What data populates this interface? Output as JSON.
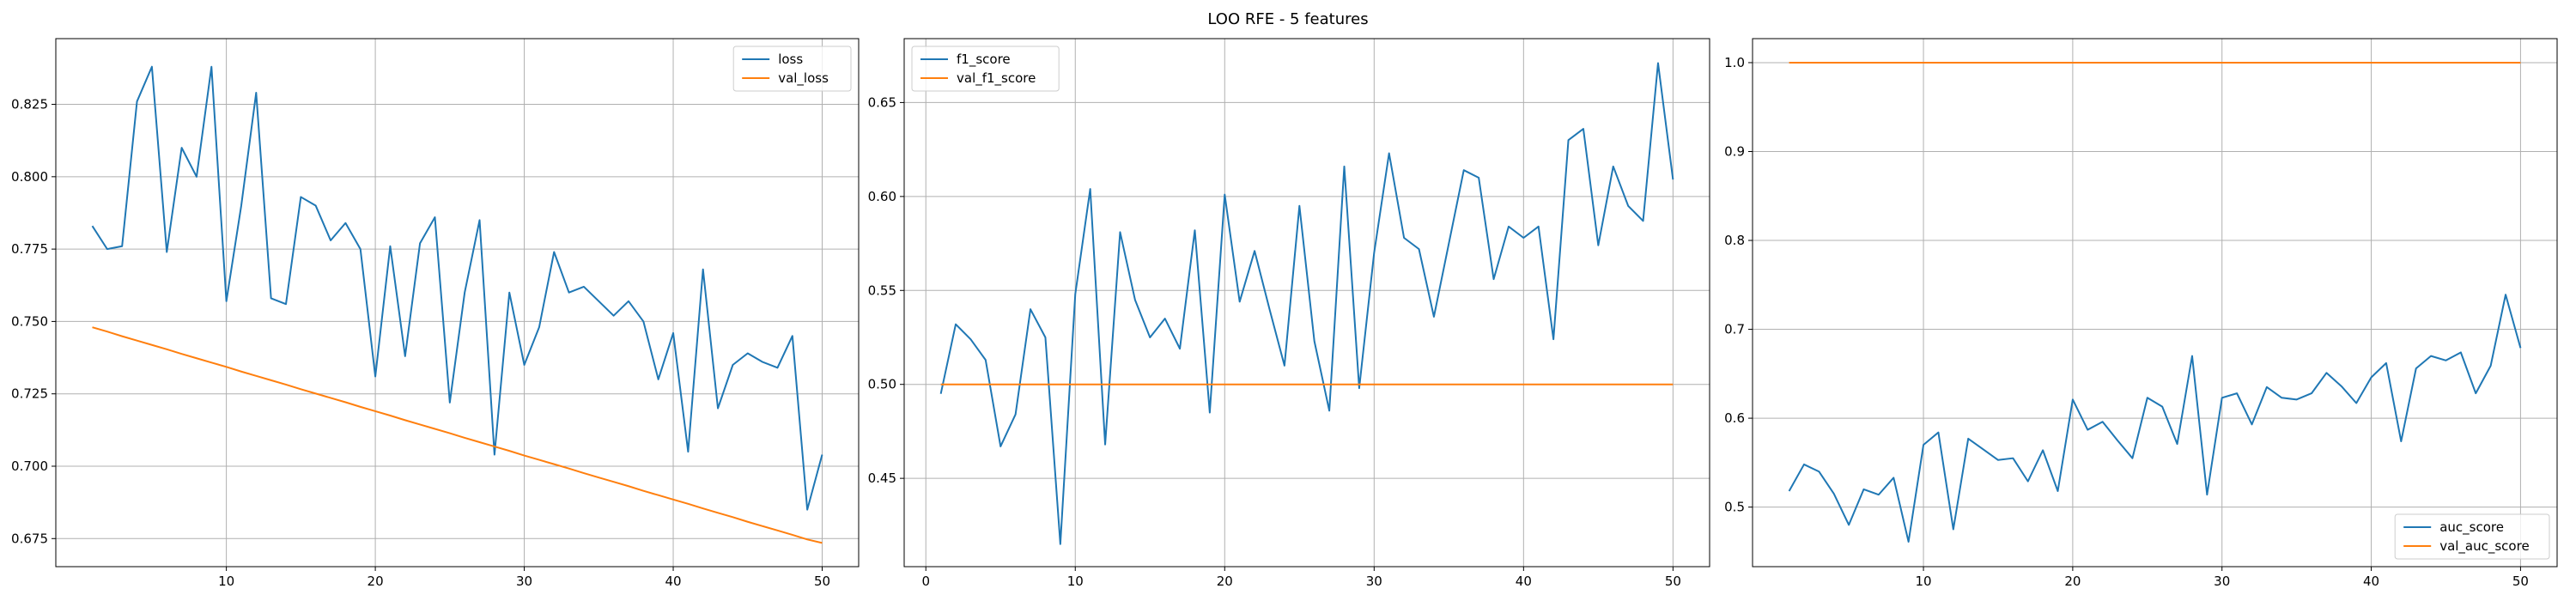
{
  "figure": {
    "title": "LOO RFE - 5 features"
  },
  "chart_data": [
    {
      "type": "line",
      "title": "",
      "xlabel": "",
      "ylabel": "",
      "xlim": [
        -1.45,
        52.45
      ],
      "ylim": [
        0.6653,
        0.8477
      ],
      "xticks": [
        10,
        20,
        30,
        40,
        50
      ],
      "yticks": [
        0.675,
        0.7,
        0.725,
        0.75,
        0.775,
        0.8,
        0.825
      ],
      "ytick_decimals": 3,
      "grid": true,
      "legend": "top-right",
      "series": [
        {
          "name": "loss",
          "color": "#1f77b4",
          "x": [
            1,
            2,
            3,
            4,
            5,
            6,
            7,
            8,
            9,
            10,
            11,
            12,
            13,
            14,
            15,
            16,
            17,
            18,
            19,
            20,
            21,
            22,
            23,
            24,
            25,
            26,
            27,
            28,
            29,
            30,
            31,
            32,
            33,
            34,
            35,
            36,
            37,
            38,
            39,
            40,
            41,
            42,
            43,
            44,
            45,
            46,
            47,
            48,
            49,
            50
          ],
          "values": [
            0.783,
            0.775,
            0.776,
            0.826,
            0.838,
            0.774,
            0.81,
            0.8,
            0.838,
            0.757,
            0.79,
            0.829,
            0.758,
            0.756,
            0.793,
            0.79,
            0.778,
            0.784,
            0.775,
            0.731,
            0.776,
            0.738,
            0.777,
            0.786,
            0.722,
            0.76,
            0.785,
            0.704,
            0.76,
            0.735,
            0.748,
            0.774,
            0.76,
            0.762,
            0.757,
            0.752,
            0.757,
            0.75,
            0.73,
            0.746,
            0.705,
            0.768,
            0.72,
            0.735,
            0.739,
            0.736,
            0.734,
            0.745,
            0.685,
            0.704
          ]
        },
        {
          "name": "val_loss",
          "color": "#ff7f0e",
          "x": [
            1,
            2,
            3,
            4,
            5,
            6,
            7,
            8,
            9,
            10,
            11,
            12,
            13,
            14,
            15,
            16,
            17,
            18,
            19,
            20,
            21,
            22,
            23,
            24,
            25,
            26,
            27,
            28,
            29,
            30,
            31,
            32,
            33,
            34,
            35,
            36,
            37,
            38,
            39,
            40,
            41,
            42,
            43,
            44,
            45,
            46,
            47,
            48,
            49,
            50
          ],
          "values": [
            0.748,
            0.7465,
            0.7449,
            0.7434,
            0.7419,
            0.7404,
            0.7388,
            0.7373,
            0.7358,
            0.7343,
            0.7327,
            0.7312,
            0.7297,
            0.7282,
            0.7266,
            0.7251,
            0.7236,
            0.7221,
            0.7205,
            0.719,
            0.7175,
            0.7159,
            0.7144,
            0.7129,
            0.7114,
            0.7098,
            0.7083,
            0.7068,
            0.7053,
            0.7037,
            0.7022,
            0.7007,
            0.6992,
            0.6976,
            0.6961,
            0.6946,
            0.6931,
            0.6915,
            0.69,
            0.6885,
            0.687,
            0.6854,
            0.6839,
            0.6824,
            0.6808,
            0.6793,
            0.6778,
            0.6763,
            0.6747,
            0.6735
          ]
        }
      ]
    },
    {
      "type": "line",
      "title": "",
      "xlabel": "",
      "ylabel": "",
      "xlim": [
        -1.45,
        52.45
      ],
      "ylim": [
        0.403,
        0.684
      ],
      "xticks": [
        0,
        10,
        20,
        30,
        40,
        50
      ],
      "yticks": [
        0.45,
        0.5,
        0.55,
        0.6,
        0.65
      ],
      "ytick_decimals": 2,
      "grid": true,
      "legend": "top-left",
      "series": [
        {
          "name": "f1_score",
          "color": "#1f77b4",
          "x": [
            1,
            2,
            3,
            4,
            5,
            6,
            7,
            8,
            9,
            10,
            11,
            12,
            13,
            14,
            15,
            16,
            17,
            18,
            19,
            20,
            21,
            22,
            23,
            24,
            25,
            26,
            27,
            28,
            29,
            30,
            31,
            32,
            33,
            34,
            35,
            36,
            37,
            38,
            39,
            40,
            41,
            42,
            43,
            44,
            45,
            46,
            47,
            48,
            49,
            50
          ],
          "values": [
            0.495,
            0.532,
            0.524,
            0.513,
            0.467,
            0.484,
            0.54,
            0.525,
            0.415,
            0.548,
            0.604,
            0.468,
            0.581,
            0.545,
            0.525,
            0.535,
            0.519,
            0.582,
            0.485,
            0.601,
            0.544,
            0.571,
            0.54,
            0.51,
            0.595,
            0.523,
            0.486,
            0.616,
            0.498,
            0.57,
            0.623,
            0.578,
            0.572,
            0.536,
            0.575,
            0.614,
            0.61,
            0.556,
            0.584,
            0.578,
            0.584,
            0.524,
            0.63,
            0.636,
            0.574,
            0.616,
            0.595,
            0.587,
            0.671,
            0.609
          ]
        },
        {
          "name": "val_f1_score",
          "color": "#ff7f0e",
          "x": [
            1,
            50
          ],
          "values": [
            0.5,
            0.5
          ]
        }
      ]
    },
    {
      "type": "line",
      "title": "",
      "xlabel": "",
      "ylabel": "",
      "xlim": [
        -1.45,
        52.45
      ],
      "ylim": [
        0.433,
        1.027
      ],
      "xticks": [
        10,
        20,
        30,
        40,
        50
      ],
      "yticks": [
        0.5,
        0.6,
        0.7,
        0.8,
        0.9,
        1.0
      ],
      "ytick_decimals": 1,
      "grid": true,
      "legend": "bottom-right",
      "series": [
        {
          "name": "auc_score",
          "color": "#1f77b4",
          "x": [
            1,
            2,
            3,
            4,
            5,
            6,
            7,
            8,
            9,
            10,
            11,
            12,
            13,
            14,
            15,
            16,
            17,
            18,
            19,
            20,
            21,
            22,
            23,
            24,
            25,
            26,
            27,
            28,
            29,
            30,
            31,
            32,
            33,
            34,
            35,
            36,
            37,
            38,
            39,
            40,
            41,
            42,
            43,
            44,
            45,
            46,
            47,
            48,
            49,
            50
          ],
          "values": [
            0.518,
            0.548,
            0.54,
            0.515,
            0.48,
            0.52,
            0.514,
            0.533,
            0.461,
            0.57,
            0.584,
            0.475,
            0.577,
            0.565,
            0.553,
            0.555,
            0.529,
            0.564,
            0.518,
            0.621,
            0.587,
            0.596,
            0.575,
            0.555,
            0.623,
            0.613,
            0.571,
            0.67,
            0.514,
            0.623,
            0.628,
            0.593,
            0.635,
            0.623,
            0.621,
            0.628,
            0.651,
            0.636,
            0.617,
            0.646,
            0.662,
            0.574,
            0.656,
            0.67,
            0.665,
            0.674,
            0.628,
            0.659,
            0.739,
            0.679
          ]
        },
        {
          "name": "val_auc_score",
          "color": "#ff7f0e",
          "x": [
            1,
            50
          ],
          "values": [
            1.0,
            1.0
          ]
        }
      ]
    }
  ]
}
